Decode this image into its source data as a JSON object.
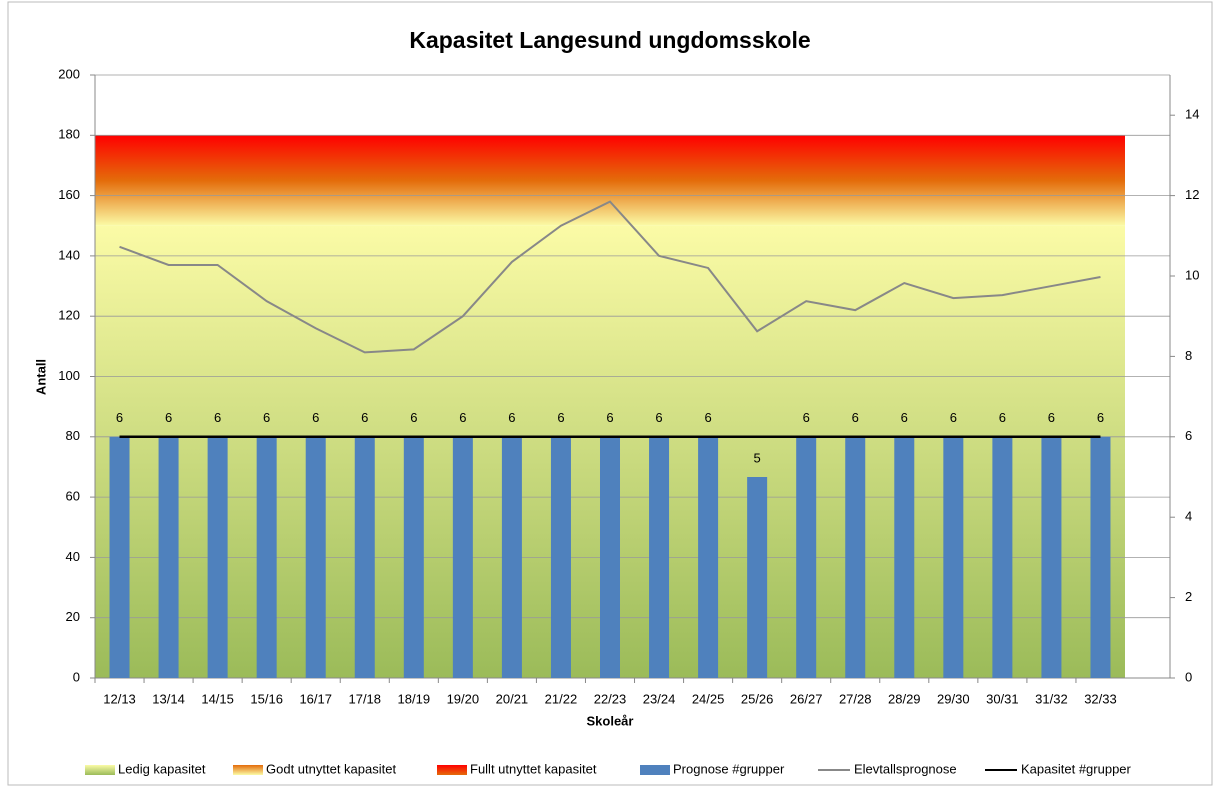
{
  "chart_data": {
    "type": "combo",
    "title": "Kapasitet Langesund ungdomsskole",
    "xlabel": "Skoleår",
    "ylabel": "Antall",
    "categories": [
      "12/13",
      "13/14",
      "14/15",
      "15/16",
      "16/17",
      "17/18",
      "18/19",
      "19/20",
      "20/21",
      "21/22",
      "22/23",
      "23/24",
      "24/25",
      "25/26",
      "26/27",
      "27/28",
      "28/29",
      "29/30",
      "30/31",
      "31/32",
      "32/33"
    ],
    "ylim": [
      0,
      200
    ],
    "yticks": [
      0,
      20,
      40,
      60,
      80,
      100,
      120,
      140,
      160,
      180,
      200
    ],
    "y2lim": [
      0,
      15
    ],
    "y2ticks": [
      0,
      2,
      4,
      6,
      8,
      10,
      12,
      14
    ],
    "grid": true,
    "legend": "bottom",
    "series": [
      {
        "name": "Ledig kapasitet",
        "type": "area",
        "gradient": [
          "#9bbb59",
          "#fbfba6"
        ],
        "values": [
          150,
          150,
          150,
          150,
          150,
          150,
          150,
          150,
          150,
          150,
          150,
          150,
          150,
          150,
          150,
          150,
          150,
          150,
          150,
          150,
          150
        ]
      },
      {
        "name": "Godt utnyttet kapasitet",
        "type": "area",
        "gradient": [
          "#fbfba6",
          "#e46c0a"
        ],
        "values": [
          15,
          15,
          15,
          15,
          15,
          15,
          15,
          15,
          15,
          15,
          15,
          15,
          15,
          15,
          15,
          15,
          15,
          15,
          15,
          15,
          15
        ]
      },
      {
        "name": "Fullt utnyttet kapasitet",
        "type": "area",
        "gradient": [
          "#e46c0a",
          "#ff0000"
        ],
        "values": [
          15,
          15,
          15,
          15,
          15,
          15,
          15,
          15,
          15,
          15,
          15,
          15,
          15,
          15,
          15,
          15,
          15,
          15,
          15,
          15,
          15
        ]
      },
      {
        "name": "Prognose #grupper",
        "type": "bar",
        "axis": "y2",
        "color": "#4f81bd",
        "values": [
          6,
          6,
          6,
          6,
          6,
          6,
          6,
          6,
          6,
          6,
          6,
          6,
          6,
          5,
          6,
          6,
          6,
          6,
          6,
          6,
          6
        ]
      },
      {
        "name": "Elevtallsprognose",
        "type": "line",
        "color": "#888888",
        "values": [
          143,
          137,
          137,
          125,
          116,
          108,
          109,
          120,
          138,
          150,
          158,
          140,
          136,
          115,
          125,
          122,
          131,
          126,
          127,
          130,
          133
        ]
      },
      {
        "name": "Kapasitet #grupper",
        "type": "line",
        "axis": "y2",
        "color": "#000000",
        "values": [
          6,
          6,
          6,
          6,
          6,
          6,
          6,
          6,
          6,
          6,
          6,
          6,
          6,
          6,
          6,
          6,
          6,
          6,
          6,
          6,
          6
        ]
      }
    ]
  }
}
